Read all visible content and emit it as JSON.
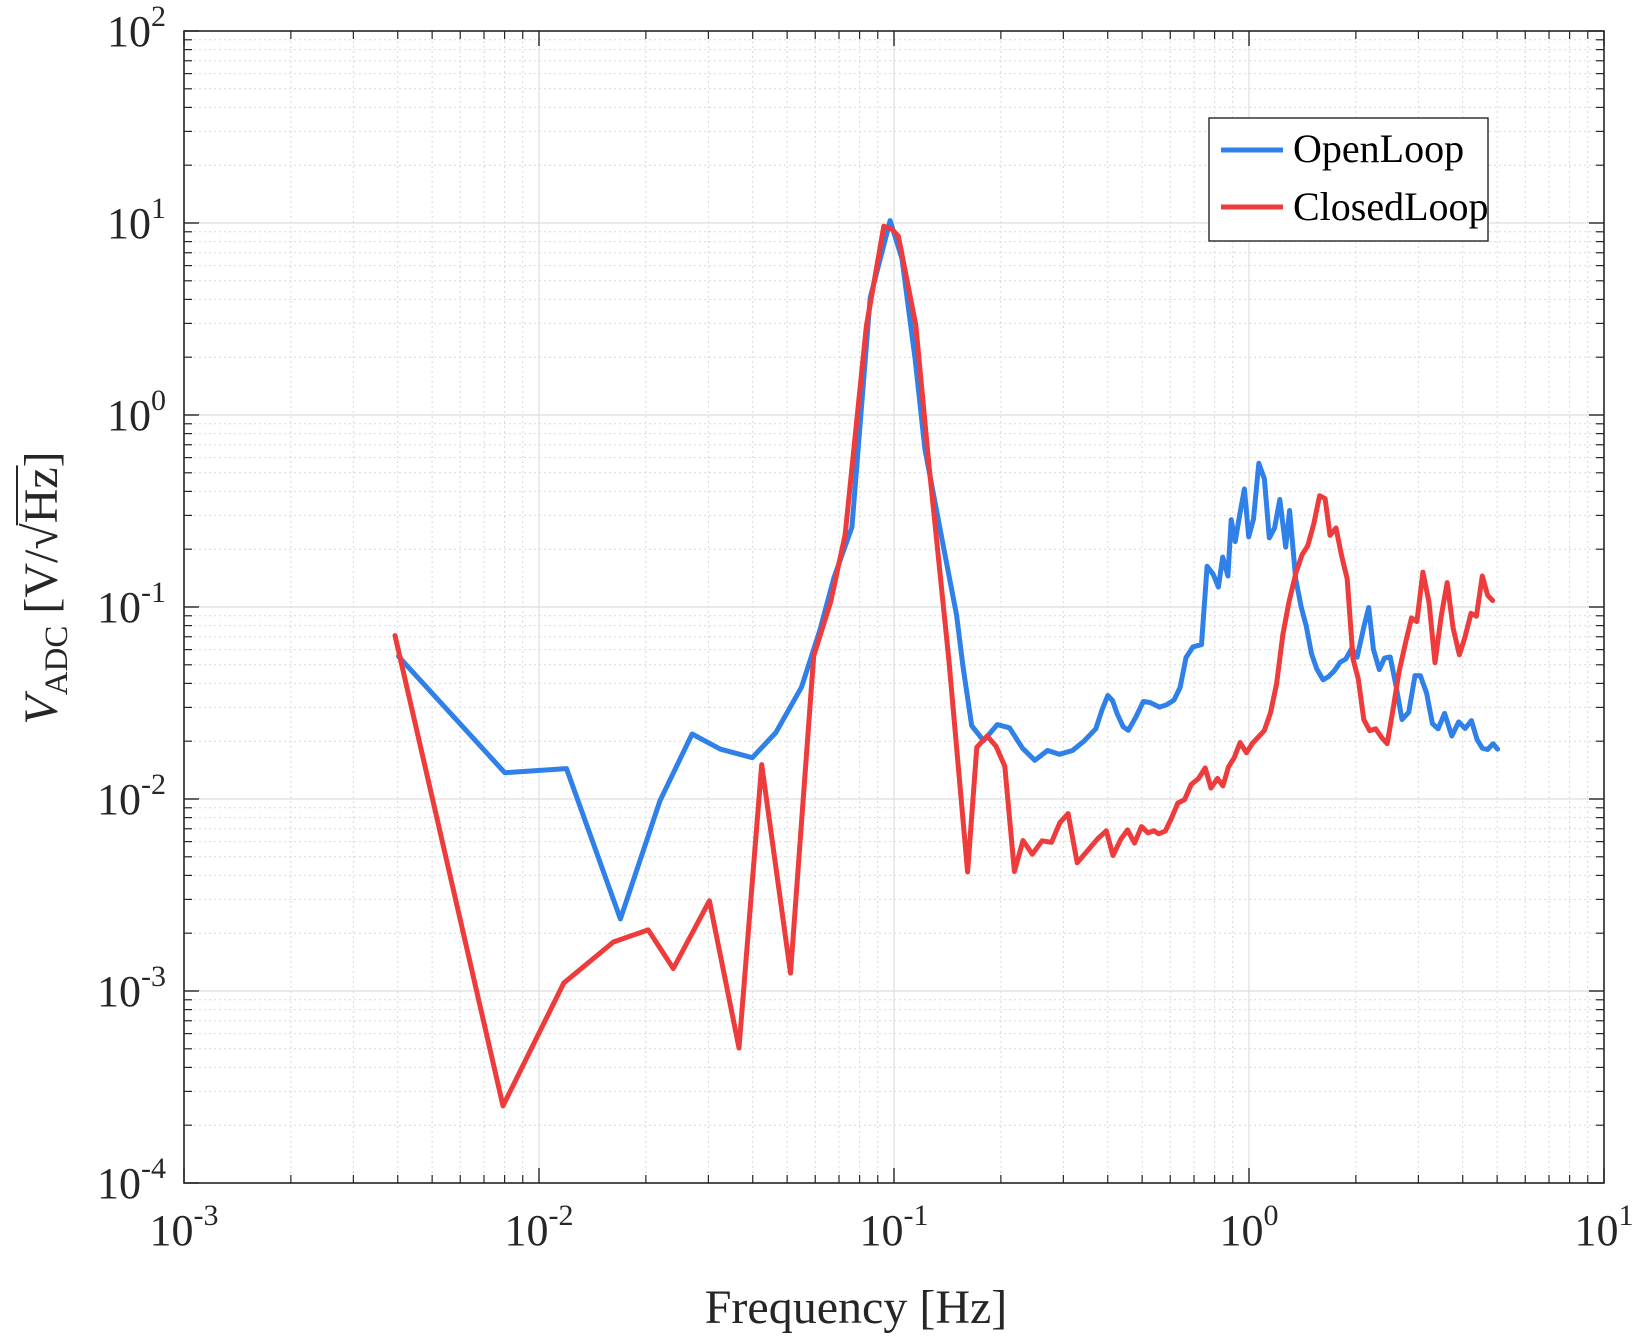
{
  "chart_data": {
    "type": "line",
    "xscale": "log",
    "yscale": "log",
    "xlim": [
      0.001,
      10
    ],
    "ylim": [
      0.0001,
      100
    ],
    "grid": true,
    "minor_grid": true,
    "legend_position": "top-right",
    "xlabel": "Frequency [Hz]",
    "ylabel": {
      "symbol": "V",
      "subscript": "ADC",
      "units_open": "[V/",
      "radical": "√",
      "radicand": "Hz",
      "units_close": "]"
    },
    "xticks": [
      {
        "base": "10",
        "exp": "-3",
        "value": 0.001
      },
      {
        "base": "10",
        "exp": "-2",
        "value": 0.01
      },
      {
        "base": "10",
        "exp": "-1",
        "value": 0.1
      },
      {
        "base": "10",
        "exp": "0",
        "value": 1
      },
      {
        "base": "10",
        "exp": "1",
        "value": 10
      }
    ],
    "yticks": [
      {
        "base": "10",
        "exp": "-4",
        "value": 0.0001
      },
      {
        "base": "10",
        "exp": "-3",
        "value": 0.001
      },
      {
        "base": "10",
        "exp": "-2",
        "value": 0.01
      },
      {
        "base": "10",
        "exp": "-1",
        "value": 0.1
      },
      {
        "base": "10",
        "exp": "0",
        "value": 1
      },
      {
        "base": "10",
        "exp": "1",
        "value": 10
      },
      {
        "base": "10",
        "exp": "2",
        "value": 100
      }
    ],
    "series": [
      {
        "name": "OpenLoop",
        "color": "#2f80e8",
        "points": [
          [
            0.00402,
            0.0553
          ],
          [
            0.00801,
            0.0137
          ],
          [
            0.01195,
            0.0144
          ],
          [
            0.01695,
            0.00237
          ],
          [
            0.0219,
            0.00977
          ],
          [
            0.027,
            0.0218
          ],
          [
            0.0324,
            0.0182
          ],
          [
            0.0399,
            0.0164
          ],
          [
            0.0465,
            0.0222
          ],
          [
            0.0549,
            0.0382
          ],
          [
            0.0618,
            0.0755
          ],
          [
            0.0678,
            0.143
          ],
          [
            0.0761,
            0.26
          ],
          [
            0.0857,
            4.08
          ],
          [
            0.0975,
            10.29
          ],
          [
            0.1053,
            6.51
          ],
          [
            0.1147,
            1.96
          ],
          [
            0.1222,
            0.665
          ],
          [
            0.1358,
            0.237
          ],
          [
            0.1501,
            0.0905
          ],
          [
            0.1563,
            0.0494
          ],
          [
            0.1655,
            0.0241
          ],
          [
            0.1788,
            0.0201
          ],
          [
            0.1953,
            0.0244
          ],
          [
            0.2115,
            0.0235
          ],
          [
            0.2301,
            0.0184
          ],
          [
            0.2493,
            0.0159
          ],
          [
            0.2707,
            0.0179
          ],
          [
            0.2924,
            0.0171
          ],
          [
            0.3183,
            0.0179
          ],
          [
            0.3419,
            0.0199
          ],
          [
            0.3703,
            0.0232
          ],
          [
            0.3859,
            0.0293
          ],
          [
            0.4002,
            0.0346
          ],
          [
            0.4126,
            0.0326
          ],
          [
            0.4256,
            0.0277
          ],
          [
            0.4418,
            0.0238
          ],
          [
            0.4575,
            0.0228
          ],
          [
            0.4796,
            0.0266
          ],
          [
            0.5039,
            0.0322
          ],
          [
            0.5261,
            0.0318
          ],
          [
            0.5597,
            0.0301
          ],
          [
            0.5854,
            0.0309
          ],
          [
            0.6146,
            0.0328
          ],
          [
            0.6398,
            0.0381
          ],
          [
            0.6647,
            0.0545
          ],
          [
            0.6949,
            0.062
          ],
          [
            0.7349,
            0.0637
          ],
          [
            0.7619,
            0.163
          ],
          [
            0.7928,
            0.148
          ],
          [
            0.8199,
            0.127
          ],
          [
            0.8429,
            0.182
          ],
          [
            0.8722,
            0.145
          ],
          [
            0.8908,
            0.285
          ],
          [
            0.9145,
            0.219
          ],
          [
            0.9418,
            0.304
          ],
          [
            0.9704,
            0.412
          ],
          [
            0.998,
            0.232
          ],
          [
            1.0293,
            0.287
          ],
          [
            1.0655,
            0.56
          ],
          [
            1.1052,
            0.464
          ],
          [
            1.1404,
            0.229
          ],
          [
            1.1808,
            0.258
          ],
          [
            1.2211,
            0.363
          ],
          [
            1.2685,
            0.205
          ],
          [
            1.3014,
            0.318
          ],
          [
            1.3534,
            0.14
          ],
          [
            1.4025,
            0.1
          ],
          [
            1.4505,
            0.0793
          ],
          [
            1.4998,
            0.0571
          ],
          [
            1.5509,
            0.0477
          ],
          [
            1.6166,
            0.0417
          ],
          [
            1.6745,
            0.0434
          ],
          [
            1.7396,
            0.0466
          ],
          [
            1.8066,
            0.0516
          ],
          [
            1.8733,
            0.0536
          ],
          [
            1.9464,
            0.0609
          ],
          [
            2.0162,
            0.0548
          ],
          [
            2.1088,
            0.0793
          ],
          [
            2.1738,
            0.0994
          ],
          [
            2.2416,
            0.0603
          ],
          [
            2.3287,
            0.0472
          ],
          [
            2.4086,
            0.0542
          ],
          [
            2.4993,
            0.0549
          ],
          [
            2.5939,
            0.0389
          ],
          [
            2.6971,
            0.0259
          ],
          [
            2.8175,
            0.0283
          ],
          [
            2.9344,
            0.0439
          ],
          [
            3.0404,
            0.0438
          ],
          [
            3.1647,
            0.0356
          ],
          [
            3.2854,
            0.0247
          ],
          [
            3.4097,
            0.0232
          ],
          [
            3.5564,
            0.0279
          ],
          [
            3.7257,
            0.0213
          ],
          [
            3.8967,
            0.0252
          ],
          [
            4.0623,
            0.0233
          ],
          [
            4.2303,
            0.0256
          ],
          [
            4.3909,
            0.0204
          ],
          [
            4.54,
            0.0184
          ],
          [
            4.6997,
            0.0181
          ],
          [
            4.8721,
            0.0194
          ],
          [
            5.0162,
            0.0182
          ]
        ]
      },
      {
        "name": "ClosedLoop",
        "color": "#ee3b3b",
        "points": [
          [
            0.00393,
            0.071
          ],
          [
            0.00792,
            0.000252
          ],
          [
            0.01174,
            0.0011
          ],
          [
            0.0162,
            0.0018
          ],
          [
            0.0203,
            0.00208
          ],
          [
            0.0239,
            0.00131
          ],
          [
            0.0302,
            0.00295
          ],
          [
            0.0366,
            0.000505
          ],
          [
            0.0424,
            0.0151
          ],
          [
            0.0511,
            0.00124
          ],
          [
            0.0594,
            0.0556
          ],
          [
            0.0663,
            0.106
          ],
          [
            0.0728,
            0.237
          ],
          [
            0.0836,
            2.91
          ],
          [
            0.0936,
            9.62
          ],
          [
            0.0988,
            9.27
          ],
          [
            0.1029,
            8.53
          ],
          [
            0.1152,
            2.94
          ],
          [
            0.1253,
            0.56
          ],
          [
            0.1428,
            0.0528
          ],
          [
            0.1612,
            0.00417
          ],
          [
            0.1711,
            0.0186
          ],
          [
            0.1829,
            0.0213
          ],
          [
            0.1939,
            0.0188
          ],
          [
            0.2052,
            0.0148
          ],
          [
            0.2183,
            0.00419
          ],
          [
            0.2309,
            0.00608
          ],
          [
            0.2452,
            0.00516
          ],
          [
            0.2611,
            0.00606
          ],
          [
            0.2778,
            0.00595
          ],
          [
            0.2931,
            0.00752
          ],
          [
            0.3094,
            0.00839
          ],
          [
            0.3281,
            0.00465
          ],
          [
            0.3513,
            0.00539
          ],
          [
            0.3741,
            0.00618
          ],
          [
            0.3963,
            0.00683
          ],
          [
            0.4139,
            0.00508
          ],
          [
            0.4357,
            0.00618
          ],
          [
            0.4548,
            0.0069
          ],
          [
            0.4759,
            0.00589
          ],
          [
            0.4981,
            0.00718
          ],
          [
            0.5196,
            0.00666
          ],
          [
            0.5392,
            0.00684
          ],
          [
            0.5566,
            0.00659
          ],
          [
            0.5809,
            0.00681
          ],
          [
            0.6014,
            0.00776
          ],
          [
            0.6303,
            0.00952
          ],
          [
            0.6585,
            0.00993
          ],
          [
            0.6872,
            0.0119
          ],
          [
            0.7213,
            0.0128
          ],
          [
            0.7528,
            0.0145
          ],
          [
            0.7813,
            0.0114
          ],
          [
            0.8151,
            0.0128
          ],
          [
            0.8441,
            0.0117
          ],
          [
            0.8755,
            0.0147
          ],
          [
            0.9086,
            0.0164
          ],
          [
            0.944,
            0.0197
          ],
          [
            0.9836,
            0.0174
          ],
          [
            1.0223,
            0.0195
          ],
          [
            1.0623,
            0.021
          ],
          [
            1.1041,
            0.0227
          ],
          [
            1.1496,
            0.0281
          ],
          [
            1.1964,
            0.0398
          ],
          [
            1.2462,
            0.0721
          ],
          [
            1.2974,
            0.107
          ],
          [
            1.3546,
            0.15
          ],
          [
            1.4102,
            0.187
          ],
          [
            1.4633,
            0.208
          ],
          [
            1.5211,
            0.27
          ],
          [
            1.5808,
            0.38
          ],
          [
            1.6383,
            0.367
          ],
          [
            1.6915,
            0.236
          ],
          [
            1.7587,
            0.258
          ],
          [
            1.8255,
            0.183
          ],
          [
            1.8905,
            0.14
          ],
          [
            1.9628,
            0.0538
          ],
          [
            2.0318,
            0.0421
          ],
          [
            2.106,
            0.0259
          ],
          [
            2.1862,
            0.0227
          ],
          [
            2.2742,
            0.0232
          ],
          [
            2.3689,
            0.0208
          ],
          [
            2.4515,
            0.0194
          ],
          [
            2.5531,
            0.0303
          ],
          [
            2.6437,
            0.0456
          ],
          [
            2.7578,
            0.0647
          ],
          [
            2.8692,
            0.0877
          ],
          [
            2.9714,
            0.084
          ],
          [
            3.0891,
            0.152
          ],
          [
            3.2138,
            0.106
          ],
          [
            3.3412,
            0.0513
          ],
          [
            3.4756,
            0.0889
          ],
          [
            3.6175,
            0.134
          ],
          [
            3.7572,
            0.0776
          ],
          [
            3.9151,
            0.0564
          ],
          [
            4.0646,
            0.0703
          ],
          [
            4.2207,
            0.0927
          ],
          [
            4.3718,
            0.0896
          ],
          [
            4.5426,
            0.145
          ],
          [
            4.7027,
            0.115
          ],
          [
            4.8598,
            0.108
          ]
        ]
      }
    ]
  }
}
